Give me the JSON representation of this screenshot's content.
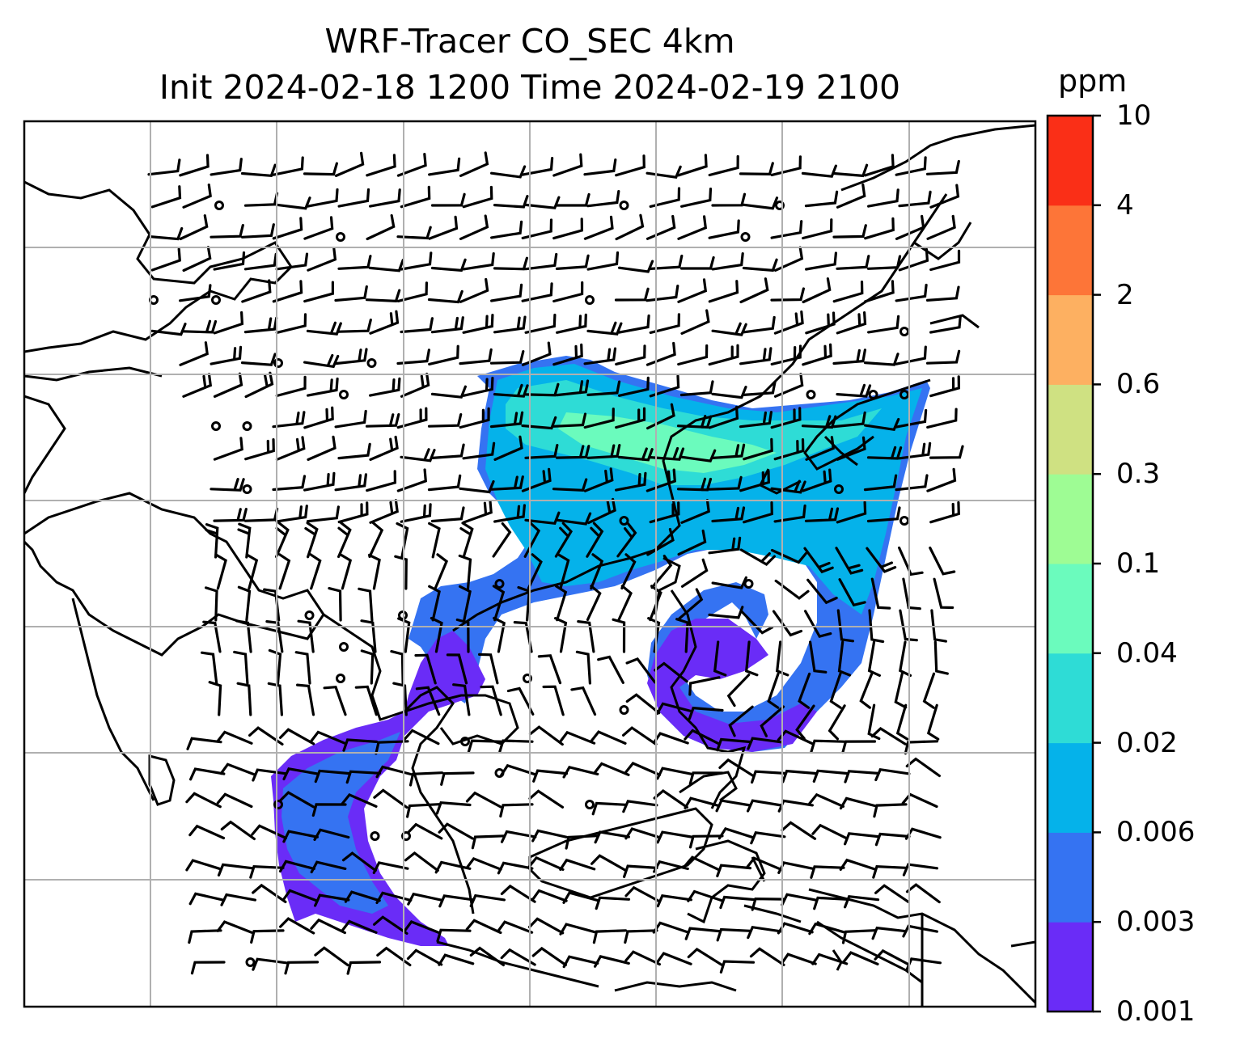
{
  "title": {
    "line1": "WRF-Tracer CO_SEC 4km",
    "line2": "Init 2024-02-18 1200 Time 2024-02-19 2100"
  },
  "colorbar": {
    "unit": "ppm",
    "tick_labels": [
      "0.001",
      "0.003",
      "0.006",
      "0.02",
      "0.04",
      "0.1",
      "0.3",
      "0.6",
      "2",
      "4",
      "10"
    ],
    "colors": [
      "#6a2cf7",
      "#3573f2",
      "#05b2ea",
      "#2edcd6",
      "#6bfbbd",
      "#9efc94",
      "#cfe182",
      "#fdb061",
      "#fd7538",
      "#fa2f17"
    ]
  },
  "map": {
    "gridlines": true,
    "field": "CO_SEC",
    "wind_barbs": true
  }
}
